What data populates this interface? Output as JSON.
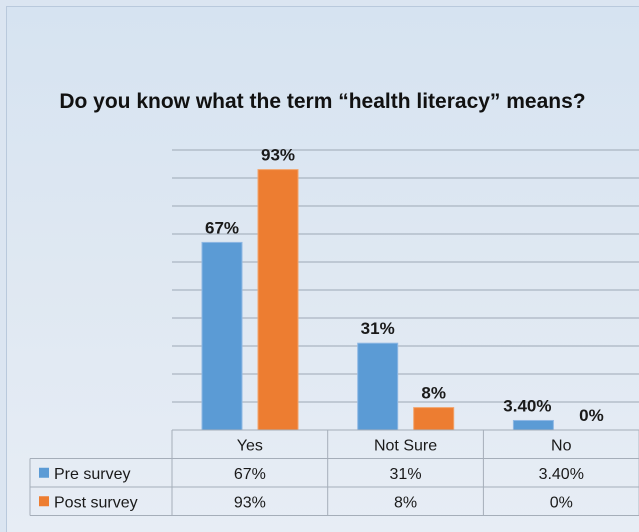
{
  "chart_data": {
    "type": "bar",
    "title": "Do you know what the term “health literacy” means?",
    "categories": [
      "Yes",
      "Not Sure",
      "No"
    ],
    "ylim": [
      0,
      1
    ],
    "grid": true,
    "legend": "bottom (data table)",
    "series": [
      {
        "name": "Pre survey",
        "color": "#5b9bd5",
        "values": [
          0.67,
          0.31,
          0.034
        ],
        "labels": [
          "67%",
          "31%",
          "3.40%"
        ]
      },
      {
        "name": "Post survey",
        "color": "#ed7d31",
        "values": [
          0.93,
          0.08,
          0.0
        ],
        "labels": [
          "93%",
          "8%",
          "0%"
        ]
      }
    ]
  }
}
